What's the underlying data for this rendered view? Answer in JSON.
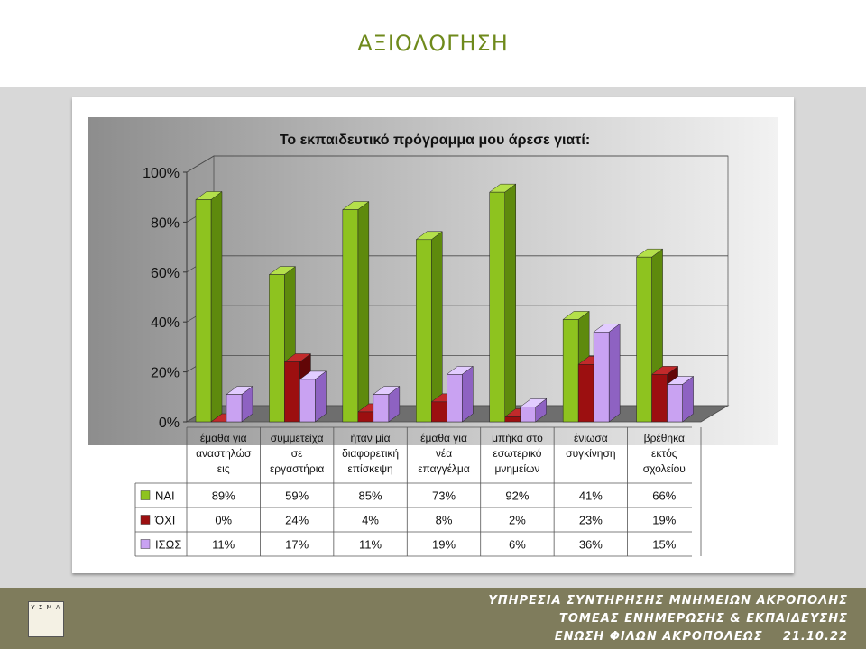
{
  "slide_title": "ΑΞΙΟΛΟΓΗΣΗ",
  "footer": {
    "logo_text": "Υ Σ Μ Α",
    "line1": "ΥΠΗΡΕΣΙΑ ΣΥΝΤΗΡΗΣΗΣ ΜΝΗΜΕΙΩΝ ΑΚΡΟΠΟΛΗΣ",
    "line2": "ΤΟΜΕΑΣ ΕΝΗΜΕΡΩΣΗΣ & ΕΚΠΑΙΔΕΥΣΗΣ",
    "line3": "ΕΝΩΣΗ ΦΙΛΩΝ ΑΚΡΟΠΟΛΕΩΣ    21.10.22"
  },
  "chart_data": {
    "type": "bar",
    "title": "Το εκπαιδευτικό πρόγραμμα μου άρεσε γιατί:",
    "categories": [
      [
        "έμαθα για",
        "αναστηλώσ",
        "εις"
      ],
      [
        "συμμετείχα",
        "σε",
        "εργαστήρια"
      ],
      [
        "ήταν μία",
        "διαφορετική",
        "επίσκεψη"
      ],
      [
        "έμαθα για",
        "νέα",
        "επαγγέλμα"
      ],
      [
        "μπήκα στο",
        "εσωτερικό",
        "μνημείων"
      ],
      [
        "ένιωσα",
        "συγκίνηση"
      ],
      [
        "βρέθηκα",
        "εκτός",
        "σχολείου"
      ]
    ],
    "series": [
      {
        "name": "ΝΑΙ",
        "values": [
          89,
          59,
          85,
          73,
          92,
          41,
          66
        ],
        "labels": [
          "89%",
          "59%",
          "85%",
          "73%",
          "92%",
          "41%",
          "66%"
        ],
        "color": "#8ec31f",
        "side": "#5e8a0d",
        "top": "#b4e04a"
      },
      {
        "name": "ΌΧΙ",
        "values": [
          0,
          24,
          4,
          8,
          2,
          23,
          19
        ],
        "labels": [
          "0%",
          "24%",
          "4%",
          "8%",
          "2%",
          "23%",
          "19%"
        ],
        "color": "#9c0f10",
        "side": "#620607",
        "top": "#c22a2b"
      },
      {
        "name": "ΙΣΩΣ",
        "values": [
          11,
          17,
          11,
          19,
          6,
          36,
          15
        ],
        "labels": [
          "11%",
          "17%",
          "11%",
          "19%",
          "6%",
          "36%",
          "15%"
        ],
        "color": "#c9a2f2",
        "side": "#8e62c2",
        "top": "#e2ccff"
      }
    ],
    "yticks": [
      "0%",
      "20%",
      "40%",
      "60%",
      "80%",
      "100%"
    ],
    "ylim": [
      0,
      100
    ],
    "data_table": true
  }
}
